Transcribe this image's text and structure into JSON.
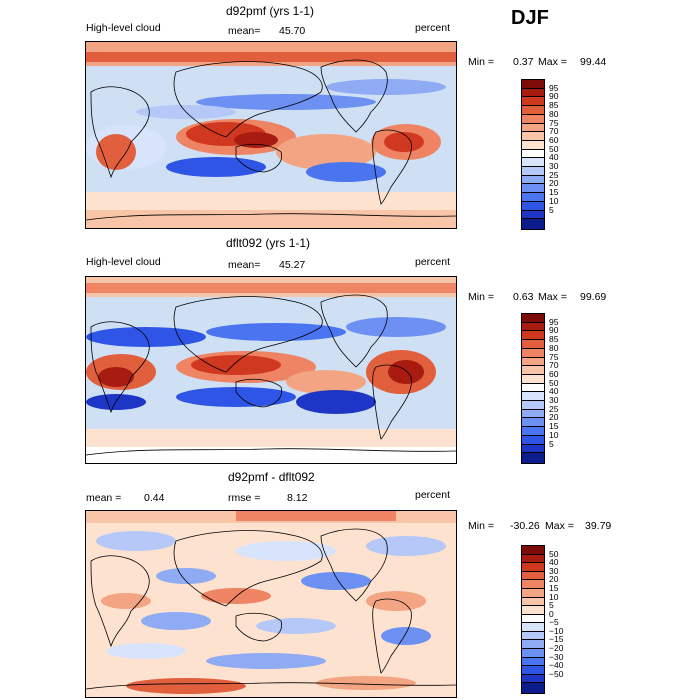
{
  "season": "DJF",
  "colors": {
    "palette": [
      "#0d1c8c",
      "#1d36c6",
      "#2e55e6",
      "#4a74f0",
      "#6c91f2",
      "#8fabf4",
      "#b5c8f7",
      "#d8e4fb",
      "#ffffff",
      "#fde2cf",
      "#f8c5a8",
      "#f3a583",
      "#ee8463",
      "#e25f3d",
      "#d13820",
      "#a81b10",
      "#7d0c08"
    ],
    "continent_outline": "#000000"
  },
  "panels": [
    {
      "title": "d92pmf (yrs 1-1)",
      "left_label": "High-level cloud",
      "mean_label": "mean=",
      "mean_value": "45.70",
      "units": "percent",
      "min_label": "Min =",
      "min_value": "0.37",
      "max_label": "Max =",
      "max_value": "99.44",
      "colorbar": [
        "95",
        "90",
        "85",
        "80",
        "75",
        "70",
        "60",
        "50",
        "40",
        "30",
        "25",
        "20",
        "15",
        "10",
        "5"
      ]
    },
    {
      "title": "dflt092 (yrs 1-1)",
      "left_label": "High-level cloud",
      "mean_label": "mean=",
      "mean_value": "45.27",
      "units": "percent",
      "min_label": "Min =",
      "min_value": "0.63",
      "max_label": "Max =",
      "max_value": "99.69",
      "colorbar": [
        "95",
        "90",
        "85",
        "80",
        "75",
        "70",
        "60",
        "50",
        "40",
        "30",
        "25",
        "20",
        "15",
        "10",
        "5"
      ]
    },
    {
      "title": "d92pmf - dflt092",
      "left_label": "mean =",
      "mean_value": "0.44",
      "rmse_label": "rmse =",
      "rmse_value": "8.12",
      "units": "percent",
      "min_label": "Min =",
      "min_value": "-30.26",
      "max_label": "Max =",
      "max_value": "39.79",
      "colorbar": [
        "50",
        "40",
        "30",
        "20",
        "15",
        "10",
        "5",
        "0",
        "−5",
        "−10",
        "−15",
        "−20",
        "−30",
        "−40",
        "−50"
      ]
    }
  ]
}
